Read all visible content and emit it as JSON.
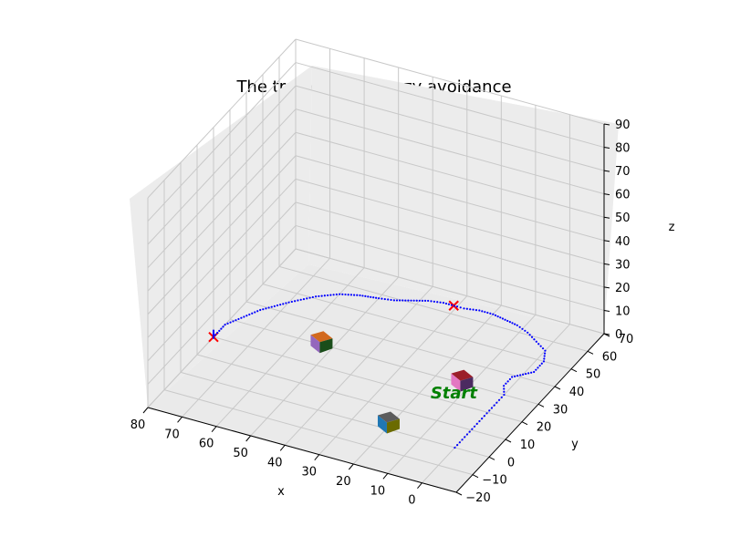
{
  "chart_data": {
    "type": "line3d",
    "title": "The trajectory of fuzzy avoidance",
    "xlabel": "x",
    "ylabel": "y",
    "zlabel": "z",
    "xlim": [
      -10,
      80
    ],
    "ylim": [
      -20,
      70
    ],
    "zlim": [
      0,
      90
    ],
    "x_ticks": [
      "0",
      "10",
      "20",
      "30",
      "40",
      "50",
      "60",
      "70",
      "80"
    ],
    "x_tick_values": [
      0,
      10,
      20,
      30,
      40,
      50,
      60,
      70,
      80
    ],
    "y_ticks": [
      "−20",
      "−10",
      "0",
      "10",
      "20",
      "30",
      "40",
      "50",
      "60",
      "70"
    ],
    "y_tick_values": [
      -20,
      -10,
      0,
      10,
      20,
      30,
      40,
      50,
      60,
      70
    ],
    "z_ticks": [
      "0",
      "10",
      "20",
      "30",
      "40",
      "50",
      "60",
      "70",
      "80",
      "90"
    ],
    "z_tick_values": [
      0,
      10,
      20,
      30,
      40,
      50,
      60,
      70,
      80,
      90
    ],
    "grid": true,
    "trajectory": {
      "color": "#0000ff",
      "style": "dotted",
      "points": [
        [
          0,
          0,
          0
        ],
        [
          0,
          3,
          0
        ],
        [
          0,
          6,
          0
        ],
        [
          0,
          9,
          0
        ],
        [
          0,
          12,
          0
        ],
        [
          0,
          15,
          0
        ],
        [
          0,
          18,
          0
        ],
        [
          0,
          21,
          0
        ],
        [
          0,
          24,
          0
        ],
        [
          0,
          27,
          0
        ],
        [
          0,
          30,
          0
        ],
        [
          2,
          34,
          0
        ],
        [
          2,
          39,
          0
        ],
        [
          -2,
          44,
          0
        ],
        [
          -2,
          50,
          0
        ],
        [
          0,
          55,
          0
        ],
        [
          4,
          58,
          0
        ],
        [
          8,
          61,
          0
        ],
        [
          12,
          63,
          0
        ],
        [
          16,
          64,
          0
        ],
        [
          20,
          65,
          0
        ],
        [
          24,
          65,
          0
        ],
        [
          28,
          64,
          0
        ],
        [
          30,
          64,
          0
        ],
        [
          34,
          64,
          0
        ],
        [
          38,
          63,
          0
        ],
        [
          42,
          61,
          0
        ],
        [
          46,
          59,
          0
        ],
        [
          50,
          58,
          0
        ],
        [
          55,
          57,
          0
        ],
        [
          60,
          55,
          0
        ],
        [
          65,
          51,
          0
        ],
        [
          70,
          45,
          0
        ],
        [
          75,
          38,
          0
        ],
        [
          80,
          27,
          0
        ],
        [
          80,
          20,
          0
        ]
      ]
    },
    "start_label": "Start",
    "start_point": [
      0,
      0,
      0
    ],
    "targets": [
      {
        "point": [
          31,
          64,
          0
        ],
        "color": "#ff0000",
        "marker": "x"
      },
      {
        "point": [
          80,
          20,
          0
        ],
        "color": "#ff0000",
        "marker": "x"
      }
    ],
    "obstacles": [
      {
        "center": [
          21,
          3,
          0
        ],
        "faces": [
          "#5c5c5c",
          "#1f77b4",
          "#6b6b00"
        ]
      },
      {
        "center": [
          13,
          31,
          0
        ],
        "faces": [
          "#9b1f2a",
          "#e377c2",
          "#4b2a60"
        ]
      },
      {
        "center": [
          54,
          31,
          0
        ],
        "faces": [
          "#d2691e",
          "#9467bd",
          "#1a4d1a"
        ]
      }
    ]
  }
}
